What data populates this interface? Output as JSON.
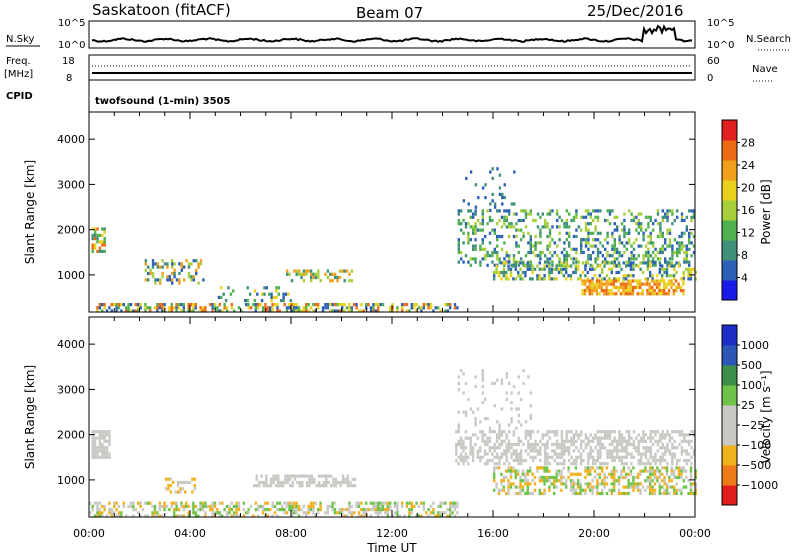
{
  "header": {
    "station": "Saskatoon (fitACF)",
    "beam": "Beam 07",
    "date": "25/Dec/2016"
  },
  "top_panels": {
    "nsky_label": "N.Sky",
    "nsky_ticks": [
      "10^5",
      "10^0"
    ],
    "nsearch_label": "N.Search",
    "nsearch_ticks": [
      "10^5",
      "10^0"
    ],
    "freq_label": "Freq.",
    "freq_unit": "[MHz]",
    "freq_ticks": [
      "18",
      "8"
    ],
    "nave_label": "Nave",
    "nave_ticks": [
      "60",
      "0"
    ],
    "cpid_label": "CPID",
    "cpid_text": "twofsound (1-min) 3505"
  },
  "chart_data": [
    {
      "type": "heatmap",
      "panel": "power",
      "ylabel": "Slant Range [km]",
      "xlabel": "",
      "x_tick_labels": [
        "00:00",
        "04:00",
        "08:00",
        "12:00",
        "16:00",
        "20:00",
        "00:00"
      ],
      "x_range_hours": [
        0,
        24
      ],
      "y_tick_labels": [
        "1000",
        "2000",
        "3000",
        "4000"
      ],
      "y_range_km": [
        180,
        4600
      ],
      "colorbar": {
        "label": "Power [dB]",
        "tick_labels": [
          "4",
          "8",
          "12",
          "16",
          "20",
          "24",
          "28"
        ],
        "range": [
          0,
          32
        ],
        "colors": [
          "#1a1ae6",
          "#2b5fb8",
          "#3f8f7a",
          "#4fb14f",
          "#a6cf3b",
          "#e8d21e",
          "#f0a01a",
          "#ec6a14",
          "#e02020"
        ]
      },
      "regions": [
        {
          "t0": 0.0,
          "t1": 14.6,
          "r0": 200,
          "r1": 380,
          "levels": [
            4,
            12,
            20,
            28
          ],
          "density": 0.55
        },
        {
          "t0": 0.1,
          "t1": 0.6,
          "r0": 1500,
          "r1": 2050,
          "levels": [
            8,
            12,
            20,
            28
          ],
          "density": 0.6
        },
        {
          "t0": 2.2,
          "t1": 4.6,
          "r0": 800,
          "r1": 1350,
          "levels": [
            4,
            8,
            16,
            24
          ],
          "density": 0.3
        },
        {
          "t0": 5.0,
          "t1": 8.0,
          "r0": 450,
          "r1": 750,
          "levels": [
            4,
            8,
            12,
            20
          ],
          "density": 0.25
        },
        {
          "t0": 7.8,
          "t1": 10.4,
          "r0": 900,
          "r1": 1120,
          "levels": [
            8,
            16,
            24
          ],
          "density": 0.45
        },
        {
          "t0": 14.6,
          "t1": 24.0,
          "r0": 1200,
          "r1": 2450,
          "levels": [
            4,
            8,
            12,
            16
          ],
          "density": 0.35
        },
        {
          "t0": 16.0,
          "t1": 24.0,
          "r0": 900,
          "r1": 1300,
          "levels": [
            4,
            8,
            16,
            20
          ],
          "density": 0.45
        },
        {
          "t0": 19.5,
          "t1": 23.5,
          "r0": 580,
          "r1": 900,
          "levels": [
            20,
            24,
            28
          ],
          "density": 0.75
        },
        {
          "t0": 14.8,
          "t1": 16.8,
          "r0": 2400,
          "r1": 3450,
          "levels": [
            4,
            8
          ],
          "density": 0.08
        }
      ]
    },
    {
      "type": "heatmap",
      "panel": "velocity",
      "ylabel": "Slant Range [km]",
      "xlabel": "Time UT",
      "x_tick_labels": [
        "00:00",
        "04:00",
        "08:00",
        "12:00",
        "16:00",
        "20:00",
        "00:00"
      ],
      "x_range_hours": [
        0,
        24
      ],
      "y_tick_labels": [
        "1000",
        "2000",
        "3000",
        "4000"
      ],
      "y_range_km": [
        180,
        4600
      ],
      "colorbar": {
        "label": "Velocity [m s⁻¹]",
        "tick_labels": [
          "1000",
          "500",
          "100",
          "25",
          "−25",
          "−100",
          "−500",
          "−1000"
        ],
        "colors": [
          "#e01c1c",
          "#ee7b1a",
          "#f0b21c",
          "#c8c8c4",
          "#c8c8c4",
          "#6fc24a",
          "#3d8e46",
          "#2b56b5",
          "#1e2fc8"
        ]
      },
      "regions": [
        {
          "t0": 0.0,
          "t1": 14.6,
          "r0": 200,
          "r1": 520,
          "levels": [
            100,
            25,
            -25,
            -100
          ],
          "density": 0.5
        },
        {
          "t0": 0.1,
          "t1": 0.8,
          "r0": 1500,
          "r1": 2100,
          "levels": [
            0
          ],
          "density": 0.8
        },
        {
          "t0": 3.0,
          "t1": 4.2,
          "r0": 700,
          "r1": 1050,
          "levels": [
            0,
            -100
          ],
          "density": 0.4
        },
        {
          "t0": 6.5,
          "t1": 10.5,
          "r0": 880,
          "r1": 1120,
          "levels": [
            0
          ],
          "density": 0.6
        },
        {
          "t0": 14.5,
          "t1": 24.0,
          "r0": 1350,
          "r1": 2100,
          "levels": [
            0
          ],
          "density": 0.55
        },
        {
          "t0": 16.0,
          "t1": 24.0,
          "r0": 700,
          "r1": 1300,
          "levels": [
            0,
            100,
            -100
          ],
          "density": 0.5
        },
        {
          "t0": 14.6,
          "t1": 17.5,
          "r0": 2100,
          "r1": 3450,
          "levels": [
            0
          ],
          "density": 0.12
        }
      ]
    }
  ]
}
